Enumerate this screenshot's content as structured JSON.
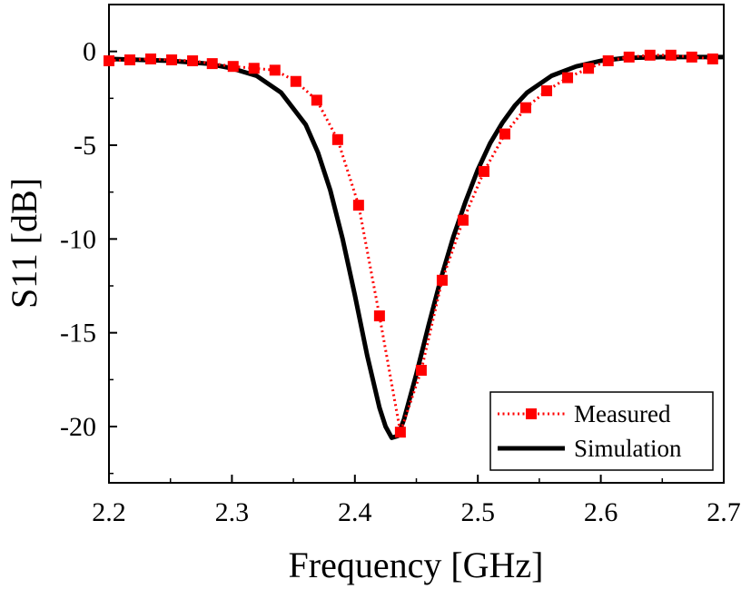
{
  "chart_data": {
    "type": "line",
    "title": "",
    "xlabel": "Frequency [GHz]",
    "ylabel": "S11 [dB]",
    "xlim": [
      2.2,
      2.7
    ],
    "ylim": [
      -23,
      2.5
    ],
    "xticks": [
      2.2,
      2.3,
      2.4,
      2.5,
      2.6,
      2.7
    ],
    "xtick_labels": [
      "2.2",
      "2.3",
      "2.4",
      "2.5",
      "2.6",
      "2.7"
    ],
    "yticks": [
      0,
      -5,
      -10,
      -15,
      -20
    ],
    "ytick_labels": [
      "0",
      "-5",
      "-10",
      "-15",
      "-20"
    ],
    "grid": false,
    "legend_position": "bottom-right",
    "colors": {
      "measured": "#ff0000",
      "simulation": "#000000"
    },
    "series": [
      {
        "name": "Measured",
        "style": "dotted-square-markers",
        "x": [
          2.2,
          2.217,
          2.234,
          2.251,
          2.268,
          2.284,
          2.301,
          2.318,
          2.335,
          2.352,
          2.369,
          2.386,
          2.403,
          2.42,
          2.437,
          2.454,
          2.471,
          2.488,
          2.505,
          2.522,
          2.539,
          2.556,
          2.573,
          2.59,
          2.606,
          2.623,
          2.64,
          2.657,
          2.674,
          2.691
        ],
        "y": [
          -0.5,
          -0.45,
          -0.4,
          -0.45,
          -0.5,
          -0.65,
          -0.8,
          -0.9,
          -1.0,
          -1.6,
          -2.6,
          -4.7,
          -8.2,
          -14.1,
          -20.3,
          -17.0,
          -12.2,
          -9.0,
          -6.4,
          -4.4,
          -3.0,
          -2.1,
          -1.4,
          -0.9,
          -0.5,
          -0.3,
          -0.2,
          -0.2,
          -0.3,
          -0.4
        ]
      },
      {
        "name": "Simulation",
        "style": "solid-thick",
        "x": [
          2.2,
          2.25,
          2.28,
          2.3,
          2.32,
          2.34,
          2.36,
          2.37,
          2.38,
          2.39,
          2.4,
          2.41,
          2.42,
          2.425,
          2.43,
          2.435,
          2.44,
          2.45,
          2.46,
          2.47,
          2.48,
          2.49,
          2.5,
          2.51,
          2.52,
          2.53,
          2.54,
          2.56,
          2.58,
          2.6,
          2.62,
          2.65,
          2.7
        ],
        "y": [
          -0.4,
          -0.5,
          -0.65,
          -0.9,
          -1.3,
          -2.2,
          -3.9,
          -5.4,
          -7.4,
          -10.0,
          -13.0,
          -16.2,
          -19.0,
          -20.0,
          -20.6,
          -20.5,
          -19.6,
          -17.2,
          -14.6,
          -12.1,
          -9.9,
          -8.0,
          -6.3,
          -4.9,
          -3.8,
          -2.9,
          -2.2,
          -1.3,
          -0.8,
          -0.5,
          -0.35,
          -0.3,
          -0.3
        ]
      }
    ]
  }
}
